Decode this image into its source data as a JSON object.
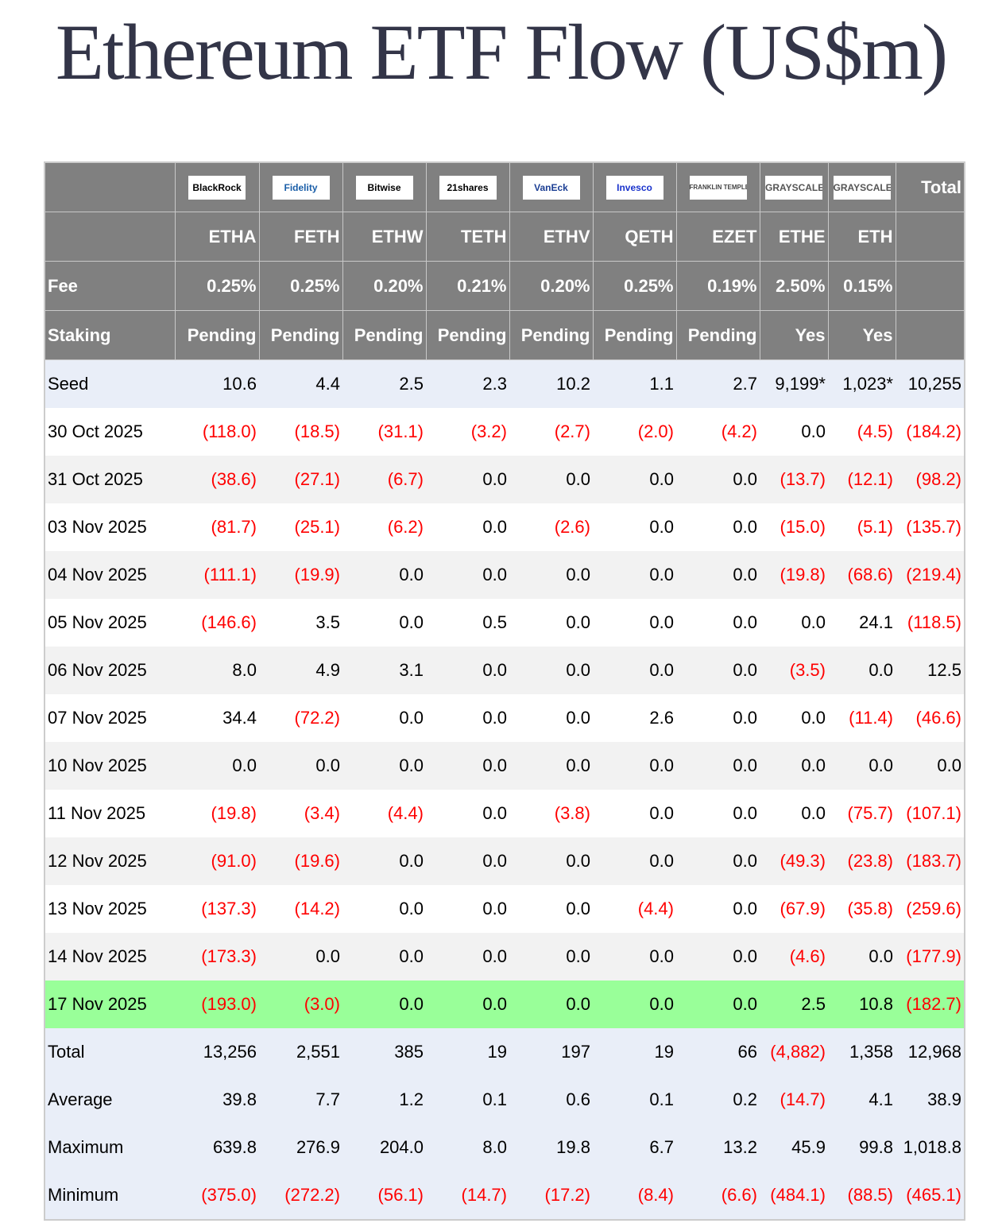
{
  "title": "Ethereum ETF Flow (US$m)",
  "issuers": [
    {
      "name": "BlackRock",
      "color": "#000000"
    },
    {
      "name": "Fidelity",
      "color": "#1a5ea8"
    },
    {
      "name": "Bitwise",
      "color": "#000000"
    },
    {
      "name": "21shares",
      "color": "#000000"
    },
    {
      "name": "VanEck",
      "color": "#1c3f94"
    },
    {
      "name": "Invesco",
      "color": "#1a33cc"
    },
    {
      "name": "FRANKLIN TEMPLETON",
      "color": "#444444"
    },
    {
      "name": "GRAYSCALE",
      "color": "#555555"
    },
    {
      "name": "GRAYSCALE",
      "color": "#555555"
    }
  ],
  "total_header": "Total",
  "tickers": [
    "ETHA",
    "FETH",
    "ETHW",
    "TETH",
    "ETHV",
    "QETH",
    "EZET",
    "ETHE",
    "ETH"
  ],
  "fee_label": "Fee",
  "fees": [
    "0.25%",
    "0.25%",
    "0.20%",
    "0.21%",
    "0.20%",
    "0.25%",
    "0.19%",
    "2.50%",
    "0.15%"
  ],
  "staking_label": "Staking",
  "staking": [
    "Pending",
    "Pending",
    "Pending",
    "Pending",
    "Pending",
    "Pending",
    "Pending",
    "Yes",
    "Yes"
  ],
  "highlight_color": "#99ff99",
  "negative_color": "#ff0000",
  "rows": [
    {
      "label": "Seed",
      "type": "seed",
      "values": [
        "10.6",
        "4.4",
        "2.5",
        "2.3",
        "10.2",
        "1.1",
        "2.7",
        "9,199*",
        "1,023*",
        "10,255"
      ]
    },
    {
      "label": "30 Oct 2025",
      "type": "day",
      "values": [
        "(118.0)",
        "(18.5)",
        "(31.1)",
        "(3.2)",
        "(2.7)",
        "(2.0)",
        "(4.2)",
        "0.0",
        "(4.5)",
        "(184.2)"
      ]
    },
    {
      "label": "31 Oct 2025",
      "type": "day",
      "values": [
        "(38.6)",
        "(27.1)",
        "(6.7)",
        "0.0",
        "0.0",
        "0.0",
        "0.0",
        "(13.7)",
        "(12.1)",
        "(98.2)"
      ]
    },
    {
      "label": "03 Nov 2025",
      "type": "day",
      "values": [
        "(81.7)",
        "(25.1)",
        "(6.2)",
        "0.0",
        "(2.6)",
        "0.0",
        "0.0",
        "(15.0)",
        "(5.1)",
        "(135.7)"
      ]
    },
    {
      "label": "04 Nov 2025",
      "type": "day",
      "values": [
        "(111.1)",
        "(19.9)",
        "0.0",
        "0.0",
        "0.0",
        "0.0",
        "0.0",
        "(19.8)",
        "(68.6)",
        "(219.4)"
      ]
    },
    {
      "label": "05 Nov 2025",
      "type": "day",
      "values": [
        "(146.6)",
        "3.5",
        "0.0",
        "0.5",
        "0.0",
        "0.0",
        "0.0",
        "0.0",
        "24.1",
        "(118.5)"
      ]
    },
    {
      "label": "06 Nov 2025",
      "type": "day",
      "values": [
        "8.0",
        "4.9",
        "3.1",
        "0.0",
        "0.0",
        "0.0",
        "0.0",
        "(3.5)",
        "0.0",
        "12.5"
      ]
    },
    {
      "label": "07 Nov 2025",
      "type": "day",
      "values": [
        "34.4",
        "(72.2)",
        "0.0",
        "0.0",
        "0.0",
        "2.6",
        "0.0",
        "0.0",
        "(11.4)",
        "(46.6)"
      ]
    },
    {
      "label": "10 Nov 2025",
      "type": "day",
      "values": [
        "0.0",
        "0.0",
        "0.0",
        "0.0",
        "0.0",
        "0.0",
        "0.0",
        "0.0",
        "0.0",
        "0.0"
      ]
    },
    {
      "label": "11 Nov 2025",
      "type": "day",
      "values": [
        "(19.8)",
        "(3.4)",
        "(4.4)",
        "0.0",
        "(3.8)",
        "0.0",
        "0.0",
        "0.0",
        "(75.7)",
        "(107.1)"
      ]
    },
    {
      "label": "12 Nov 2025",
      "type": "day",
      "values": [
        "(91.0)",
        "(19.6)",
        "0.0",
        "0.0",
        "0.0",
        "0.0",
        "0.0",
        "(49.3)",
        "(23.8)",
        "(183.7)"
      ]
    },
    {
      "label": "13 Nov 2025",
      "type": "day",
      "values": [
        "(137.3)",
        "(14.2)",
        "0.0",
        "0.0",
        "0.0",
        "(4.4)",
        "0.0",
        "(67.9)",
        "(35.8)",
        "(259.6)"
      ]
    },
    {
      "label": "14 Nov 2025",
      "type": "day",
      "values": [
        "(173.3)",
        "0.0",
        "0.0",
        "0.0",
        "0.0",
        "0.0",
        "0.0",
        "(4.6)",
        "0.0",
        "(177.9)"
      ]
    },
    {
      "label": "17 Nov 2025",
      "type": "highlight",
      "values": [
        "(193.0)",
        "(3.0)",
        "0.0",
        "0.0",
        "0.0",
        "0.0",
        "0.0",
        "2.5",
        "10.8",
        "(182.7)"
      ]
    },
    {
      "label": "Total",
      "type": "stat",
      "values": [
        "13,256",
        "2,551",
        "385",
        "19",
        "197",
        "19",
        "66",
        "(4,882)",
        "1,358",
        "12,968"
      ]
    },
    {
      "label": "Average",
      "type": "stat",
      "values": [
        "39.8",
        "7.7",
        "1.2",
        "0.1",
        "0.6",
        "0.1",
        "0.2",
        "(14.7)",
        "4.1",
        "38.9"
      ]
    },
    {
      "label": "Maximum",
      "type": "stat",
      "values": [
        "639.8",
        "276.9",
        "204.0",
        "8.0",
        "19.8",
        "6.7",
        "13.2",
        "45.9",
        "99.8",
        "1,018.8"
      ]
    },
    {
      "label": "Minimum",
      "type": "stat",
      "values": [
        "(375.0)",
        "(272.2)",
        "(56.1)",
        "(14.7)",
        "(17.2)",
        "(8.4)",
        "(6.6)",
        "(484.1)",
        "(88.5)",
        "(465.1)"
      ]
    }
  ]
}
